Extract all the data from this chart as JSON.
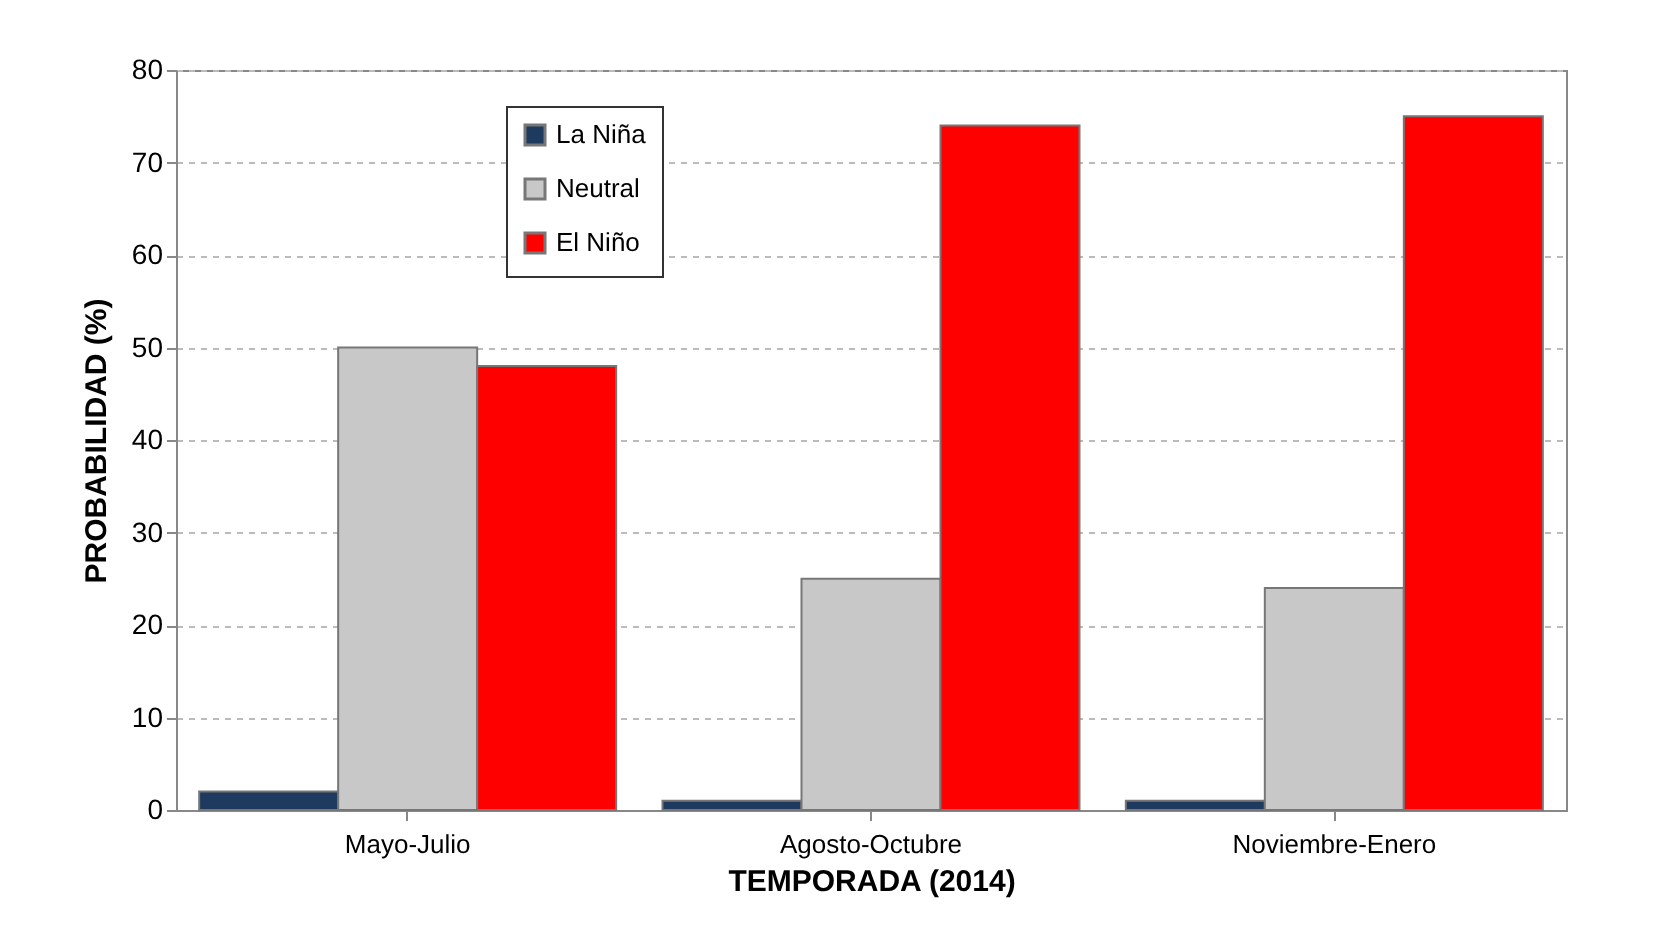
{
  "chart_data": {
    "type": "bar",
    "xlabel": "TEMPORADA (2014)",
    "ylabel": "PROBABILIDAD (%)",
    "categories": [
      "Mayo-Julio",
      "Agosto-Octubre",
      "Noviembre-Enero"
    ],
    "series": [
      {
        "name": "La Niña",
        "color": "#1f3a5f",
        "values": [
          2,
          1,
          1
        ]
      },
      {
        "name": "Neutral",
        "color": "#c8c8c8",
        "values": [
          50,
          25,
          24
        ]
      },
      {
        "name": "El Niño",
        "color": "#ff0000",
        "values": [
          48,
          74,
          75
        ]
      }
    ],
    "ylim": [
      0,
      80
    ],
    "yticks": [
      0,
      10,
      20,
      30,
      40,
      50,
      60,
      70,
      80
    ],
    "grid": "y",
    "legend": "top left"
  }
}
